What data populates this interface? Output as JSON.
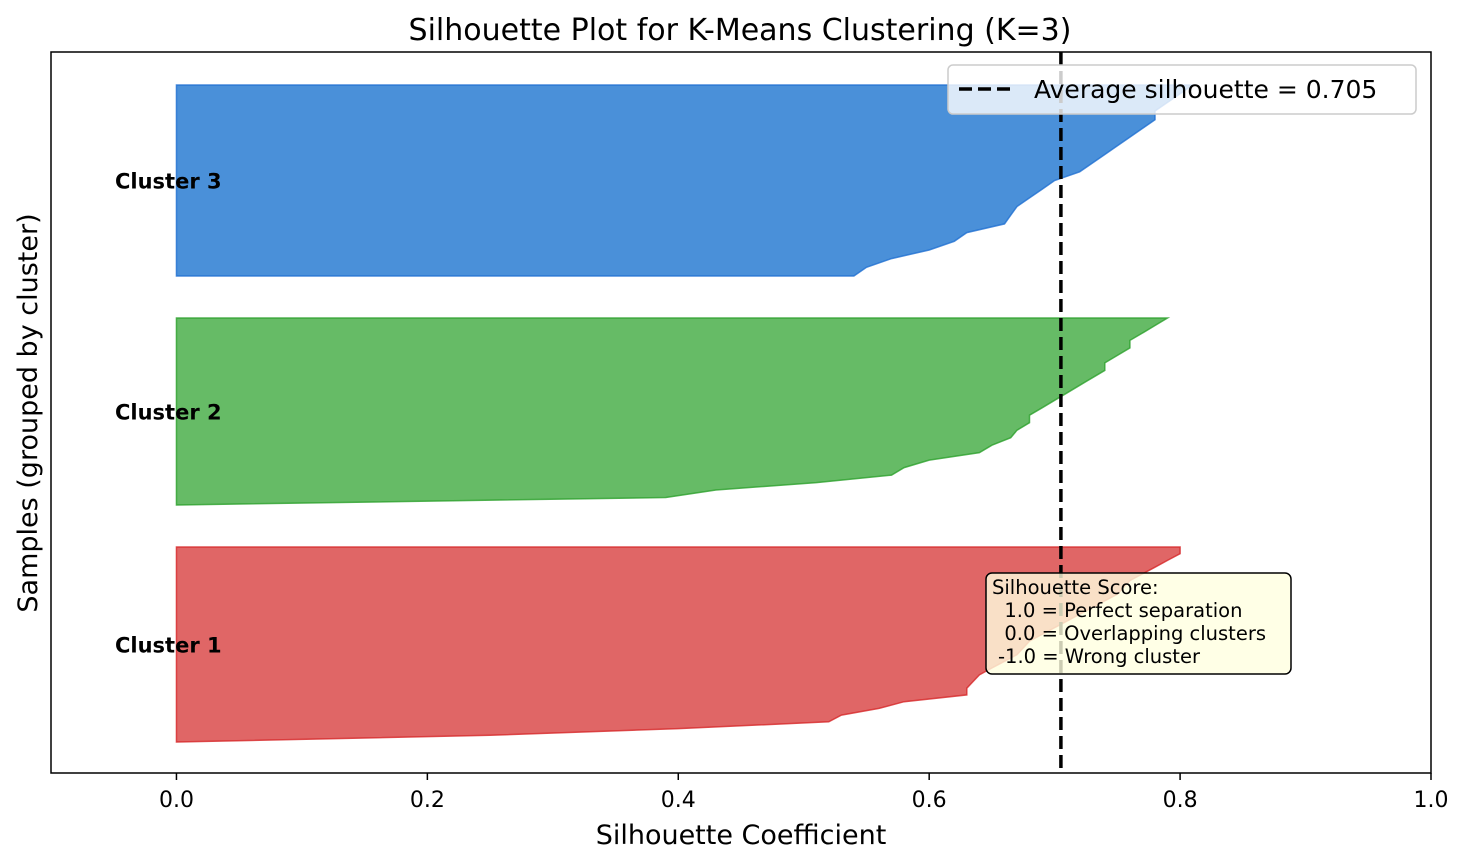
{
  "chart_data": {
    "type": "area",
    "title": "Silhouette Plot for K-Means Clustering (K=3)",
    "xlabel": "Silhouette Coefficient",
    "ylabel": "Samples (grouped by cluster)",
    "xlim": [
      -0.1,
      1.0
    ],
    "xticks": [
      0.0,
      0.2,
      0.4,
      0.6,
      0.8,
      1.0
    ],
    "xtick_labels": [
      "0.0",
      "0.2",
      "0.4",
      "0.6",
      "0.8",
      "1.0"
    ],
    "average_silhouette": 0.705,
    "legend": {
      "label": "Average silhouette = 0.705",
      "location": "top-right"
    },
    "clusters": [
      {
        "name": "Cluster 1",
        "color": "#d62728",
        "fill_color": "#e06666",
        "sorted_silhouette_values_top_to_bottom": [
          0.8,
          0.8,
          0.79,
          0.78,
          0.77,
          0.76,
          0.755,
          0.75,
          0.74,
          0.73,
          0.72,
          0.71,
          0.7,
          0.69,
          0.68,
          0.675,
          0.67,
          0.66,
          0.65,
          0.64,
          0.635,
          0.63,
          0.63,
          0.58,
          0.56,
          0.53,
          0.52,
          0.4,
          0.25,
          0.0
        ]
      },
      {
        "name": "Cluster 2",
        "color": "#2ca02c",
        "fill_color": "#66bb66",
        "sorted_silhouette_values_top_to_bottom": [
          0.79,
          0.78,
          0.77,
          0.76,
          0.76,
          0.75,
          0.74,
          0.74,
          0.73,
          0.72,
          0.71,
          0.7,
          0.69,
          0.68,
          0.68,
          0.67,
          0.665,
          0.65,
          0.64,
          0.6,
          0.58,
          0.57,
          0.51,
          0.43,
          0.39,
          0.0
        ]
      },
      {
        "name": "Cluster 3",
        "color": "#1f6fd1",
        "fill_color": "#4a90d9",
        "sorted_silhouette_values_top_to_bottom": [
          0.81,
          0.8,
          0.79,
          0.78,
          0.78,
          0.77,
          0.76,
          0.75,
          0.74,
          0.73,
          0.72,
          0.7,
          0.69,
          0.68,
          0.67,
          0.665,
          0.66,
          0.63,
          0.62,
          0.6,
          0.57,
          0.55,
          0.54
        ]
      }
    ],
    "annotation": {
      "lines": [
        "Silhouette Score:",
        "  1.0 = Perfect separation",
        "  0.0 = Overlapping clusters",
        "-1.0 = Wrong cluster"
      ],
      "background": "#ffffe0"
    }
  }
}
